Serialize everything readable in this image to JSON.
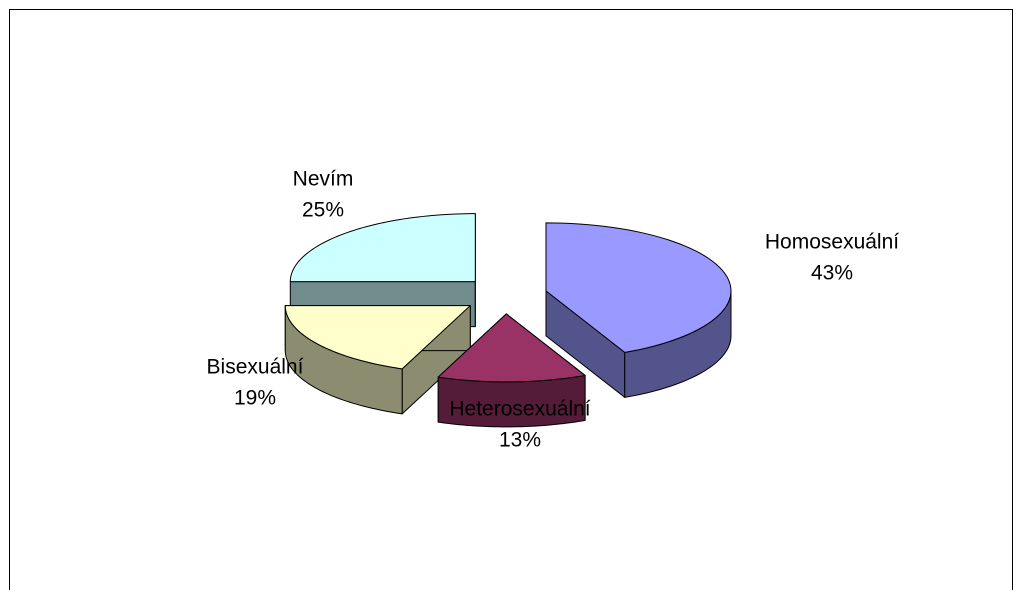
{
  "chart_data": {
    "type": "pie",
    "categories": [
      "Homosexuální",
      "Heterosexuální",
      "Bisexuální",
      "Nevím"
    ],
    "values": [
      43,
      13,
      19,
      25
    ],
    "value_labels": [
      "43%",
      "13%",
      "19%",
      "25%"
    ],
    "colors": [
      "#9999ff",
      "#993366",
      "#ffffcc",
      "#ccffff"
    ]
  }
}
